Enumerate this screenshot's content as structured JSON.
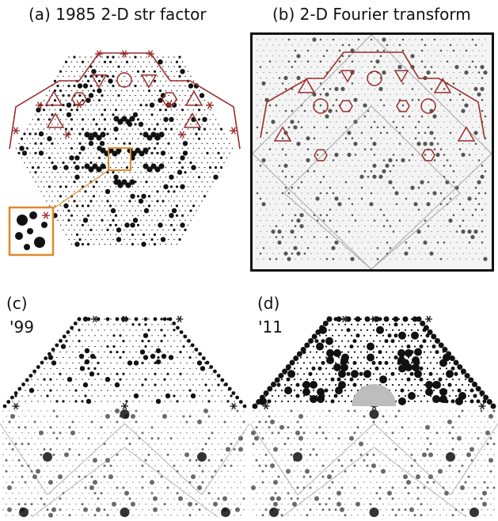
{
  "panels": {
    "a": {
      "label": "(a) 1985 2-D str factor"
    },
    "b": {
      "label": "(b)  2-D Fourier transform"
    },
    "c": {
      "label": "(c)",
      "year": "'99"
    },
    "d": {
      "label": "(d)",
      "year": "'11"
    }
  },
  "colors": {
    "annotation": "#9b2b2b",
    "inset": "#e0892b",
    "spots": "#111111",
    "highlight": "#bdbdbd"
  }
}
